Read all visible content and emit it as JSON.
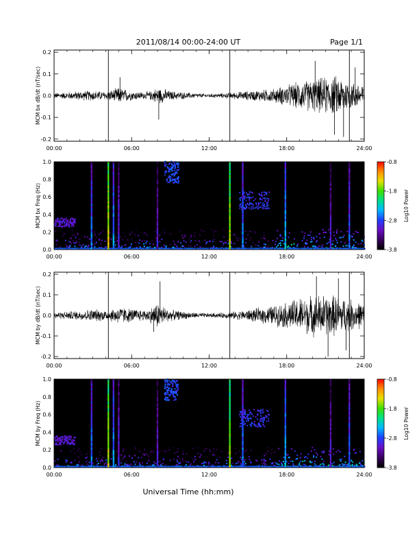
{
  "header": {
    "title": "2011/08/14  00:00-24:00 UT",
    "page": "Page 1/1"
  },
  "footer": {
    "xlabel": "Universal Time (hh:mm)"
  },
  "colors": {
    "trace": "#000000",
    "spectrogram_background": "#000000",
    "colormap": [
      "#000000",
      "#3b0060",
      "#6a10c8",
      "#1f40ff",
      "#00b8ff",
      "#00e08a",
      "#40e000",
      "#e8e000",
      "#ff8a00",
      "#ff0000"
    ]
  },
  "chart_data": [
    {
      "type": "line",
      "name": "bx-dbdt",
      "ylabel": "MCM bx dB/dt (nT/sec)",
      "x_ticks": [
        "00:00",
        "06:00",
        "12:00",
        "18:00",
        "24:00"
      ],
      "y_ticks": [
        "-0.2",
        "-0.1",
        "0.0",
        "0.1",
        "0.2"
      ],
      "xlim": [
        0,
        24
      ],
      "ylim": [
        -0.21,
        0.21
      ],
      "vlines": [
        4.2,
        13.6,
        22.85
      ],
      "envelope": {
        "hours": [
          0,
          1,
          2,
          3,
          4,
          4.5,
          5,
          6,
          7,
          7.5,
          8,
          8.5,
          9,
          10,
          11,
          12,
          13,
          14,
          15,
          16,
          17,
          18,
          19,
          20,
          21,
          22,
          23,
          24
        ],
        "amplitude": [
          0.012,
          0.015,
          0.02,
          0.022,
          0.018,
          0.025,
          0.035,
          0.02,
          0.015,
          0.02,
          0.035,
          0.03,
          0.02,
          0.015,
          0.01,
          0.008,
          0.01,
          0.015,
          0.02,
          0.025,
          0.03,
          0.045,
          0.06,
          0.07,
          0.08,
          0.085,
          0.06,
          0.05
        ]
      },
      "spikes": [
        {
          "hour": 5.1,
          "value": 0.085
        },
        {
          "hour": 8.1,
          "value": -0.11
        },
        {
          "hour": 20.2,
          "value": 0.16
        },
        {
          "hour": 21.7,
          "value": -0.18
        },
        {
          "hour": 22.4,
          "value": -0.19
        },
        {
          "hour": 23.3,
          "value": 0.13
        }
      ]
    },
    {
      "type": "heatmap",
      "name": "bx-spectrogram",
      "ylabel": "MCM bx Freq (Hz)",
      "x_ticks": [
        "00:00",
        "06:00",
        "12:00",
        "18:00",
        "24:00"
      ],
      "y_ticks": [
        "0.0",
        "0.2",
        "0.4",
        "0.6",
        "0.8",
        "1.0"
      ],
      "xlim": [
        0,
        24
      ],
      "ylim": [
        0,
        1.0
      ],
      "colorbar_label": "Log10 Power",
      "colorbar_ticks": [
        "-0.8",
        "-1.8",
        "-2.8",
        "-3.8"
      ],
      "zlim": [
        -3.8,
        -0.8
      ],
      "vertical_bands": [
        {
          "hour": 2.9,
          "power": -2.6
        },
        {
          "hour": 4.2,
          "power": -1.4
        },
        {
          "hour": 4.6,
          "power": -2.5
        },
        {
          "hour": 5.0,
          "power": -2.9
        },
        {
          "hour": 8.0,
          "power": -3.0
        },
        {
          "hour": 13.6,
          "power": -1.5
        },
        {
          "hour": 14.6,
          "power": -2.6
        },
        {
          "hour": 17.9,
          "power": -2.4
        },
        {
          "hour": 21.4,
          "power": -3.0
        },
        {
          "hour": 22.85,
          "power": -2.7
        }
      ],
      "blobs": [
        {
          "t0": 8.5,
          "t1": 9.6,
          "f0": 0.75,
          "f1": 1.0,
          "power": -3.0
        },
        {
          "t0": 14.3,
          "t1": 16.6,
          "f0": 0.45,
          "f1": 0.65,
          "power": -3.1
        },
        {
          "t0": 0.0,
          "t1": 1.6,
          "f0": 0.25,
          "f1": 0.35,
          "power": -3.3
        }
      ]
    },
    {
      "type": "line",
      "name": "by-dbdt",
      "ylabel": "MCM by dB/dt (nT/sec)",
      "x_ticks": [
        "00:00",
        "06:00",
        "12:00",
        "18:00",
        "24:00"
      ],
      "y_ticks": [
        "-0.2",
        "-0.1",
        "0.0",
        "0.1",
        "0.2"
      ],
      "xlim": [
        0,
        24
      ],
      "ylim": [
        -0.21,
        0.21
      ],
      "vlines": [
        4.2,
        13.6,
        22.85
      ],
      "envelope": {
        "hours": [
          0,
          1,
          2,
          3,
          4,
          4.5,
          5,
          6,
          7,
          7.5,
          8,
          8.5,
          9,
          10,
          11,
          12,
          13,
          14,
          15,
          16,
          17,
          18,
          19,
          20,
          21,
          22,
          23,
          24
        ],
        "amplitude": [
          0.015,
          0.018,
          0.022,
          0.028,
          0.025,
          0.03,
          0.04,
          0.03,
          0.025,
          0.035,
          0.06,
          0.04,
          0.025,
          0.018,
          0.012,
          0.01,
          0.012,
          0.018,
          0.025,
          0.035,
          0.045,
          0.06,
          0.08,
          0.09,
          0.095,
          0.09,
          0.07,
          0.055
        ]
      },
      "spikes": [
        {
          "hour": 8.2,
          "value": 0.165
        },
        {
          "hour": 7.7,
          "value": -0.08
        },
        {
          "hour": 20.3,
          "value": 0.19
        },
        {
          "hour": 21.2,
          "value": -0.2
        },
        {
          "hour": 22.0,
          "value": 0.18
        },
        {
          "hour": 22.6,
          "value": -0.17
        }
      ]
    },
    {
      "type": "heatmap",
      "name": "by-spectrogram",
      "ylabel": "MCM by Freq (Hz)",
      "x_ticks": [
        "00:00",
        "06:00",
        "12:00",
        "18:00",
        "24:00"
      ],
      "y_ticks": [
        "0.0",
        "0.2",
        "0.4",
        "0.6",
        "0.8",
        "1.0"
      ],
      "xlim": [
        0,
        24
      ],
      "ylim": [
        0,
        1.0
      ],
      "colorbar_label": "Log10 Power",
      "colorbar_ticks": [
        "-0.8",
        "-1.8",
        "-2.8",
        "-3.8"
      ],
      "zlim": [
        -3.8,
        -0.8
      ],
      "vertical_bands": [
        {
          "hour": 2.9,
          "power": -2.6
        },
        {
          "hour": 4.2,
          "power": -1.5
        },
        {
          "hour": 4.6,
          "power": -2.5
        },
        {
          "hour": 5.0,
          "power": -2.9
        },
        {
          "hour": 8.0,
          "power": -3.0
        },
        {
          "hour": 13.6,
          "power": -1.6
        },
        {
          "hour": 14.6,
          "power": -2.6
        },
        {
          "hour": 17.9,
          "power": -2.4
        },
        {
          "hour": 21.4,
          "power": -3.0
        },
        {
          "hour": 22.85,
          "power": -2.7
        }
      ],
      "blobs": [
        {
          "t0": 8.5,
          "t1": 9.6,
          "f0": 0.75,
          "f1": 1.0,
          "power": -3.0
        },
        {
          "t0": 14.3,
          "t1": 16.6,
          "f0": 0.45,
          "f1": 0.65,
          "power": -3.1
        },
        {
          "t0": 0.0,
          "t1": 1.6,
          "f0": 0.25,
          "f1": 0.35,
          "power": -3.3
        }
      ]
    }
  ]
}
